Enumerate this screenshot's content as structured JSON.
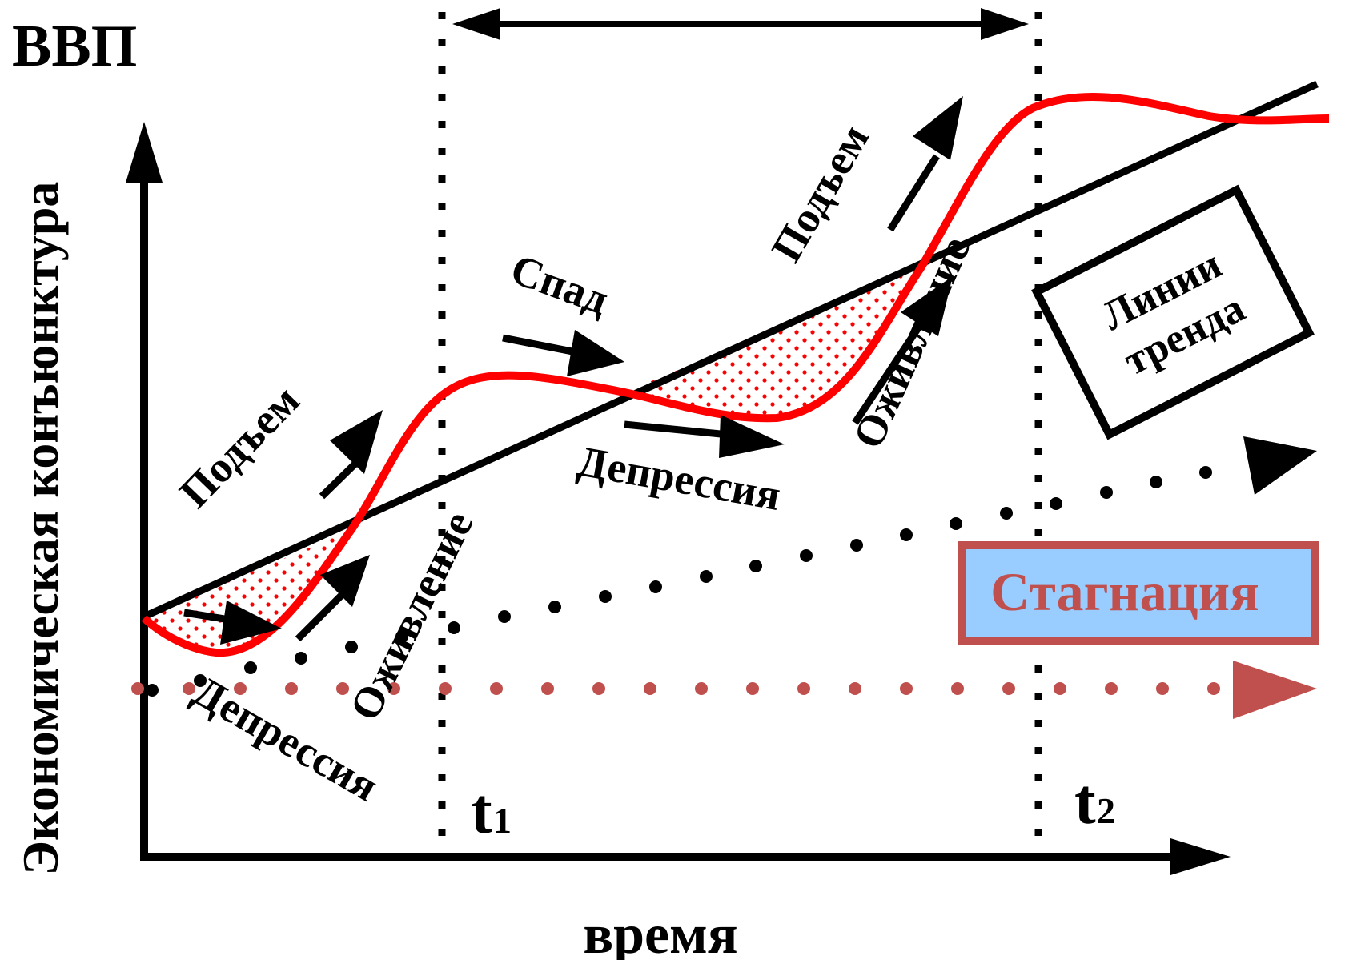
{
  "labels": {
    "gdp": "ВВП",
    "y_axis": "Экономическая конъюнктура",
    "x_axis": "время",
    "t1": "t",
    "t1_sub": "1",
    "t2": "t",
    "t2_sub": "2",
    "rise_1": "Подъем",
    "rise_2": "Подъем",
    "depression_1": "Депрессия",
    "depression_2": "Депрессия",
    "revival_1": "Оживление",
    "revival_2": "Оживление",
    "decline": "Спад",
    "trend_line1": "Линии",
    "trend_line2": "тренда",
    "stagnation": "Стагнация"
  },
  "colors": {
    "cycle_curve": "#ff0000",
    "trend": "#000000",
    "stagnation_fill": "#99ccff",
    "stagnation_border": "#c0504d",
    "stagnation_text": "#c0504d"
  }
}
